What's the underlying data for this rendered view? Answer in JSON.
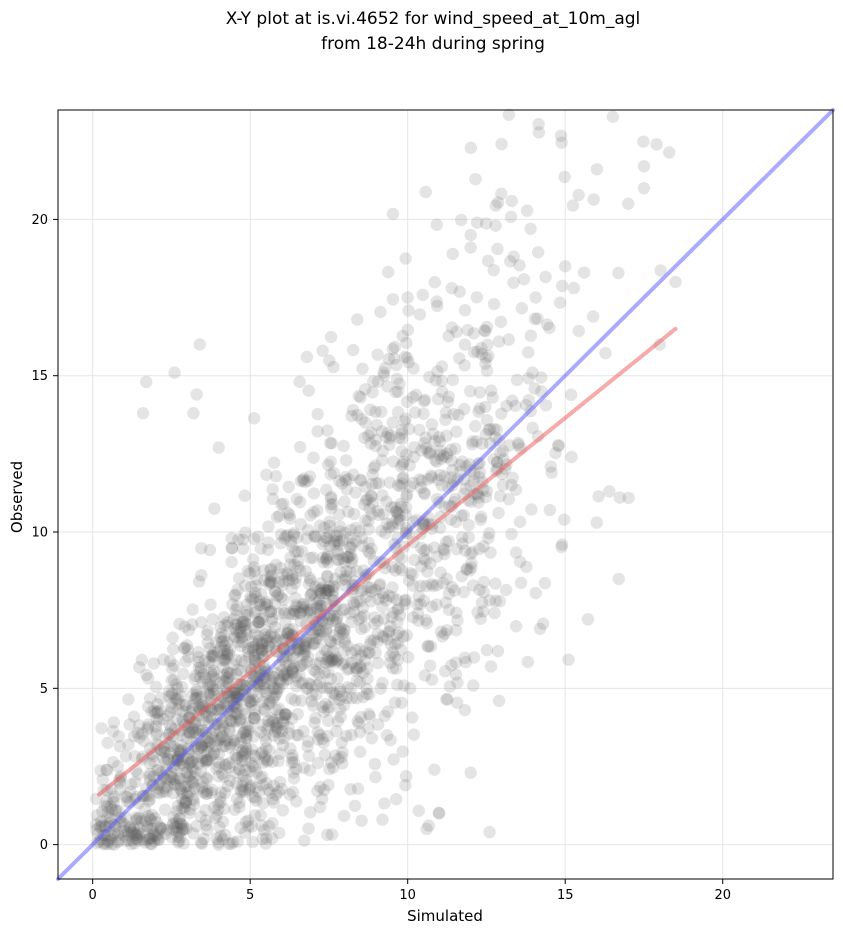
{
  "chart_data": {
    "type": "scatter",
    "title": [
      "X-Y plot at is.vi.4652 for wind_speed_at_10m_agl",
      "from 18-24h during spring"
    ],
    "xlabel": "Simulated",
    "ylabel": "Observed",
    "xlim": [
      -1.1,
      23.5
    ],
    "ylim": [
      -1.1,
      23.5
    ],
    "xticks": [
      0,
      5,
      10,
      15,
      20
    ],
    "yticks": [
      0,
      5,
      10,
      15,
      20
    ],
    "grid": true,
    "point_color": "#555555",
    "point_count": 2200,
    "scatter_regions": [
      {
        "x_center": 5.0,
        "x_spread": 2.6,
        "y_slope": 1.0,
        "y_spread": 2.4,
        "weight": 0.7
      },
      {
        "x_center": 10.5,
        "x_spread": 2.4,
        "y_slope": 1.0,
        "y_spread": 2.8,
        "weight": 0.3
      }
    ],
    "points": [
      {
        "x": 17.9,
        "y": 22.4
      },
      {
        "x": 17.5,
        "y": 21.7
      },
      {
        "x": 17.5,
        "y": 21.0
      },
      {
        "x": 17.0,
        "y": 20.5
      },
      {
        "x": 12.0,
        "y": 19.5
      },
      {
        "x": 12.0,
        "y": 19.1
      },
      {
        "x": 13.9,
        "y": 19.7
      },
      {
        "x": 3.4,
        "y": 16.0
      },
      {
        "x": 3.3,
        "y": 14.4
      },
      {
        "x": 2.6,
        "y": 15.1
      },
      {
        "x": 1.7,
        "y": 14.8
      },
      {
        "x": 1.6,
        "y": 13.8
      },
      {
        "x": 3.2,
        "y": 13.8
      },
      {
        "x": 4.0,
        "y": 12.7
      },
      {
        "x": 18.5,
        "y": 18.0
      },
      {
        "x": 18.0,
        "y": 16.0
      },
      {
        "x": 16.7,
        "y": 8.5
      },
      {
        "x": 16.0,
        "y": 10.3
      },
      {
        "x": 16.4,
        "y": 11.3
      },
      {
        "x": 14.2,
        "y": 6.9
      },
      {
        "x": 12.6,
        "y": 0.4
      },
      {
        "x": 11.0,
        "y": 1.0
      },
      {
        "x": 10.6,
        "y": 0.5
      },
      {
        "x": 9.2,
        "y": 0.8
      },
      {
        "x": 12.0,
        "y": 2.3
      },
      {
        "x": 12.9,
        "y": 4.6
      },
      {
        "x": 7.3,
        "y": 15.8
      },
      {
        "x": 6.8,
        "y": 15.6
      },
      {
        "x": 10.0,
        "y": 17.5
      },
      {
        "x": 11.4,
        "y": 17.8
      },
      {
        "x": 8.4,
        "y": 16.8
      },
      {
        "x": 0.3,
        "y": 0.6
      },
      {
        "x": 0.5,
        "y": 0.1
      },
      {
        "x": 4.0,
        "y": 0.0
      },
      {
        "x": 15.0,
        "y": 18.5
      },
      {
        "x": 15.6,
        "y": 18.3
      },
      {
        "x": 15.2,
        "y": 12.4
      },
      {
        "x": 14.9,
        "y": 9.6
      }
    ],
    "lines": [
      {
        "kind": "one-to-one",
        "color": "#5555ff",
        "x": [
          -1.1,
          23.5
        ],
        "y": [
          -1.1,
          23.5
        ]
      },
      {
        "kind": "regression",
        "color": "#ee5555",
        "x": [
          0.2,
          18.5
        ],
        "y": [
          1.6,
          16.5
        ]
      }
    ]
  }
}
